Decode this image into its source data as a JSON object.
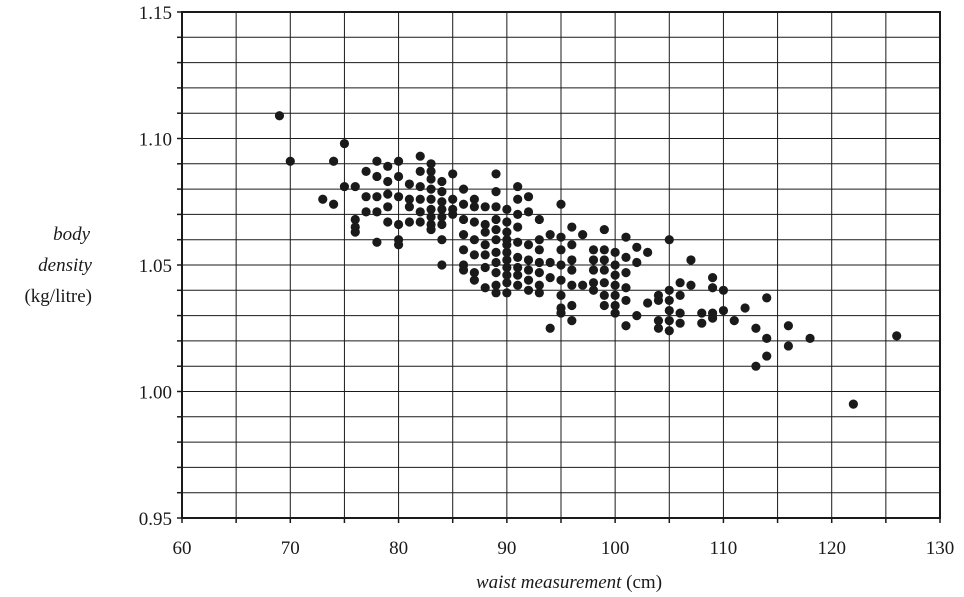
{
  "chart_data": {
    "type": "scatter",
    "title": "",
    "xlabel_italic": "waist measurement",
    "xlabel_unit": "(cm)",
    "ylabel_line1": "body",
    "ylabel_line2": "density",
    "ylabel_unit": "(kg/litre)",
    "xlim": [
      60,
      130
    ],
    "ylim": [
      0.95,
      1.15
    ],
    "grid": true,
    "x_ticks": [
      60,
      70,
      80,
      90,
      100,
      110,
      120,
      130
    ],
    "y_ticks": [
      "0.95",
      "1.00",
      "1.05",
      "1.10",
      "1.15"
    ],
    "y_tick_values": [
      0.95,
      1.0,
      1.05,
      1.1,
      1.15
    ],
    "minor_x_step": 5,
    "minor_y_step": 0.01,
    "points": [
      [
        69,
        1.109
      ],
      [
        70,
        1.091
      ],
      [
        73,
        1.076
      ],
      [
        74,
        1.091
      ],
      [
        74,
        1.074
      ],
      [
        75,
        1.098
      ],
      [
        75,
        1.081
      ],
      [
        76,
        1.081
      ],
      [
        76,
        1.068
      ],
      [
        76,
        1.065
      ],
      [
        76,
        1.063
      ],
      [
        77,
        1.087
      ],
      [
        77,
        1.077
      ],
      [
        77,
        1.071
      ],
      [
        78,
        1.091
      ],
      [
        78,
        1.085
      ],
      [
        78,
        1.077
      ],
      [
        78,
        1.071
      ],
      [
        78,
        1.059
      ],
      [
        79,
        1.089
      ],
      [
        79,
        1.083
      ],
      [
        79,
        1.078
      ],
      [
        79,
        1.073
      ],
      [
        79,
        1.067
      ],
      [
        80,
        1.091
      ],
      [
        80,
        1.085
      ],
      [
        80,
        1.077
      ],
      [
        80,
        1.066
      ],
      [
        80,
        1.06
      ],
      [
        80,
        1.058
      ],
      [
        81,
        1.082
      ],
      [
        81,
        1.076
      ],
      [
        81,
        1.073
      ],
      [
        81,
        1.067
      ],
      [
        82,
        1.093
      ],
      [
        82,
        1.087
      ],
      [
        82,
        1.081
      ],
      [
        82,
        1.076
      ],
      [
        82,
        1.071
      ],
      [
        82,
        1.067
      ],
      [
        83,
        1.09
      ],
      [
        83,
        1.087
      ],
      [
        83,
        1.084
      ],
      [
        83,
        1.08
      ],
      [
        83,
        1.076
      ],
      [
        83,
        1.072
      ],
      [
        83,
        1.069
      ],
      [
        83,
        1.066
      ],
      [
        83,
        1.064
      ],
      [
        84,
        1.083
      ],
      [
        84,
        1.079
      ],
      [
        84,
        1.075
      ],
      [
        84,
        1.072
      ],
      [
        84,
        1.069
      ],
      [
        84,
        1.066
      ],
      [
        84,
        1.06
      ],
      [
        84,
        1.05
      ],
      [
        85,
        1.086
      ],
      [
        85,
        1.076
      ],
      [
        85,
        1.072
      ],
      [
        85,
        1.07
      ],
      [
        86,
        1.08
      ],
      [
        86,
        1.074
      ],
      [
        86,
        1.068
      ],
      [
        86,
        1.062
      ],
      [
        86,
        1.056
      ],
      [
        86,
        1.05
      ],
      [
        86,
        1.048
      ],
      [
        87,
        1.076
      ],
      [
        87,
        1.073
      ],
      [
        87,
        1.067
      ],
      [
        87,
        1.06
      ],
      [
        87,
        1.054
      ],
      [
        87,
        1.047
      ],
      [
        87,
        1.044
      ],
      [
        88,
        1.073
      ],
      [
        88,
        1.066
      ],
      [
        88,
        1.063
      ],
      [
        88,
        1.058
      ],
      [
        88,
        1.054
      ],
      [
        88,
        1.049
      ],
      [
        88,
        1.041
      ],
      [
        89,
        1.086
      ],
      [
        89,
        1.079
      ],
      [
        89,
        1.073
      ],
      [
        89,
        1.068
      ],
      [
        89,
        1.064
      ],
      [
        89,
        1.06
      ],
      [
        89,
        1.055
      ],
      [
        89,
        1.051
      ],
      [
        89,
        1.047
      ],
      [
        89,
        1.042
      ],
      [
        89,
        1.039
      ],
      [
        90,
        1.072
      ],
      [
        90,
        1.067
      ],
      [
        90,
        1.063
      ],
      [
        90,
        1.06
      ],
      [
        90,
        1.058
      ],
      [
        90,
        1.055
      ],
      [
        90,
        1.052
      ],
      [
        90,
        1.049
      ],
      [
        90,
        1.046
      ],
      [
        90,
        1.043
      ],
      [
        90,
        1.039
      ],
      [
        91,
        1.081
      ],
      [
        91,
        1.076
      ],
      [
        91,
        1.07
      ],
      [
        91,
        1.065
      ],
      [
        91,
        1.059
      ],
      [
        91,
        1.053
      ],
      [
        91,
        1.049
      ],
      [
        91,
        1.046
      ],
      [
        91,
        1.042
      ],
      [
        92,
        1.077
      ],
      [
        92,
        1.071
      ],
      [
        92,
        1.058
      ],
      [
        92,
        1.052
      ],
      [
        92,
        1.048
      ],
      [
        92,
        1.044
      ],
      [
        92,
        1.04
      ],
      [
        93,
        1.068
      ],
      [
        93,
        1.06
      ],
      [
        93,
        1.056
      ],
      [
        93,
        1.051
      ],
      [
        93,
        1.047
      ],
      [
        93,
        1.042
      ],
      [
        93,
        1.039
      ],
      [
        94,
        1.062
      ],
      [
        94,
        1.051
      ],
      [
        94,
        1.045
      ],
      [
        94,
        1.025
      ],
      [
        95,
        1.074
      ],
      [
        95,
        1.061
      ],
      [
        95,
        1.056
      ],
      [
        95,
        1.05
      ],
      [
        95,
        1.044
      ],
      [
        95,
        1.038
      ],
      [
        95,
        1.033
      ],
      [
        95,
        1.031
      ],
      [
        96,
        1.065
      ],
      [
        96,
        1.058
      ],
      [
        96,
        1.052
      ],
      [
        96,
        1.048
      ],
      [
        96,
        1.042
      ],
      [
        96,
        1.034
      ],
      [
        96,
        1.028
      ],
      [
        97,
        1.062
      ],
      [
        97,
        1.042
      ],
      [
        98,
        1.056
      ],
      [
        98,
        1.052
      ],
      [
        98,
        1.048
      ],
      [
        98,
        1.043
      ],
      [
        98,
        1.04
      ],
      [
        99,
        1.064
      ],
      [
        99,
        1.056
      ],
      [
        99,
        1.052
      ],
      [
        99,
        1.048
      ],
      [
        99,
        1.043
      ],
      [
        99,
        1.038
      ],
      [
        99,
        1.034
      ],
      [
        100,
        1.055
      ],
      [
        100,
        1.05
      ],
      [
        100,
        1.046
      ],
      [
        100,
        1.042
      ],
      [
        100,
        1.038
      ],
      [
        100,
        1.034
      ],
      [
        100,
        1.031
      ],
      [
        101,
        1.061
      ],
      [
        101,
        1.053
      ],
      [
        101,
        1.047
      ],
      [
        101,
        1.041
      ],
      [
        101,
        1.036
      ],
      [
        101,
        1.026
      ],
      [
        102,
        1.057
      ],
      [
        102,
        1.051
      ],
      [
        102,
        1.03
      ],
      [
        103,
        1.055
      ],
      [
        103,
        1.035
      ],
      [
        104,
        1.038
      ],
      [
        104,
        1.036
      ],
      [
        104,
        1.028
      ],
      [
        104,
        1.025
      ],
      [
        105,
        1.06
      ],
      [
        105,
        1.04
      ],
      [
        105,
        1.036
      ],
      [
        105,
        1.032
      ],
      [
        105,
        1.028
      ],
      [
        105,
        1.024
      ],
      [
        106,
        1.043
      ],
      [
        106,
        1.038
      ],
      [
        106,
        1.031
      ],
      [
        106,
        1.027
      ],
      [
        107,
        1.052
      ],
      [
        107,
        1.042
      ],
      [
        108,
        1.031
      ],
      [
        108,
        1.027
      ],
      [
        109,
        1.045
      ],
      [
        109,
        1.041
      ],
      [
        109,
        1.031
      ],
      [
        109,
        1.029
      ],
      [
        110,
        1.04
      ],
      [
        110,
        1.032
      ],
      [
        111,
        1.028
      ],
      [
        112,
        1.033
      ],
      [
        113,
        1.025
      ],
      [
        113,
        1.01
      ],
      [
        114,
        1.037
      ],
      [
        114,
        1.021
      ],
      [
        114,
        1.014
      ],
      [
        116,
        1.026
      ],
      [
        116,
        1.018
      ],
      [
        118,
        1.021
      ],
      [
        122,
        0.995
      ],
      [
        126,
        1.022
      ]
    ]
  }
}
